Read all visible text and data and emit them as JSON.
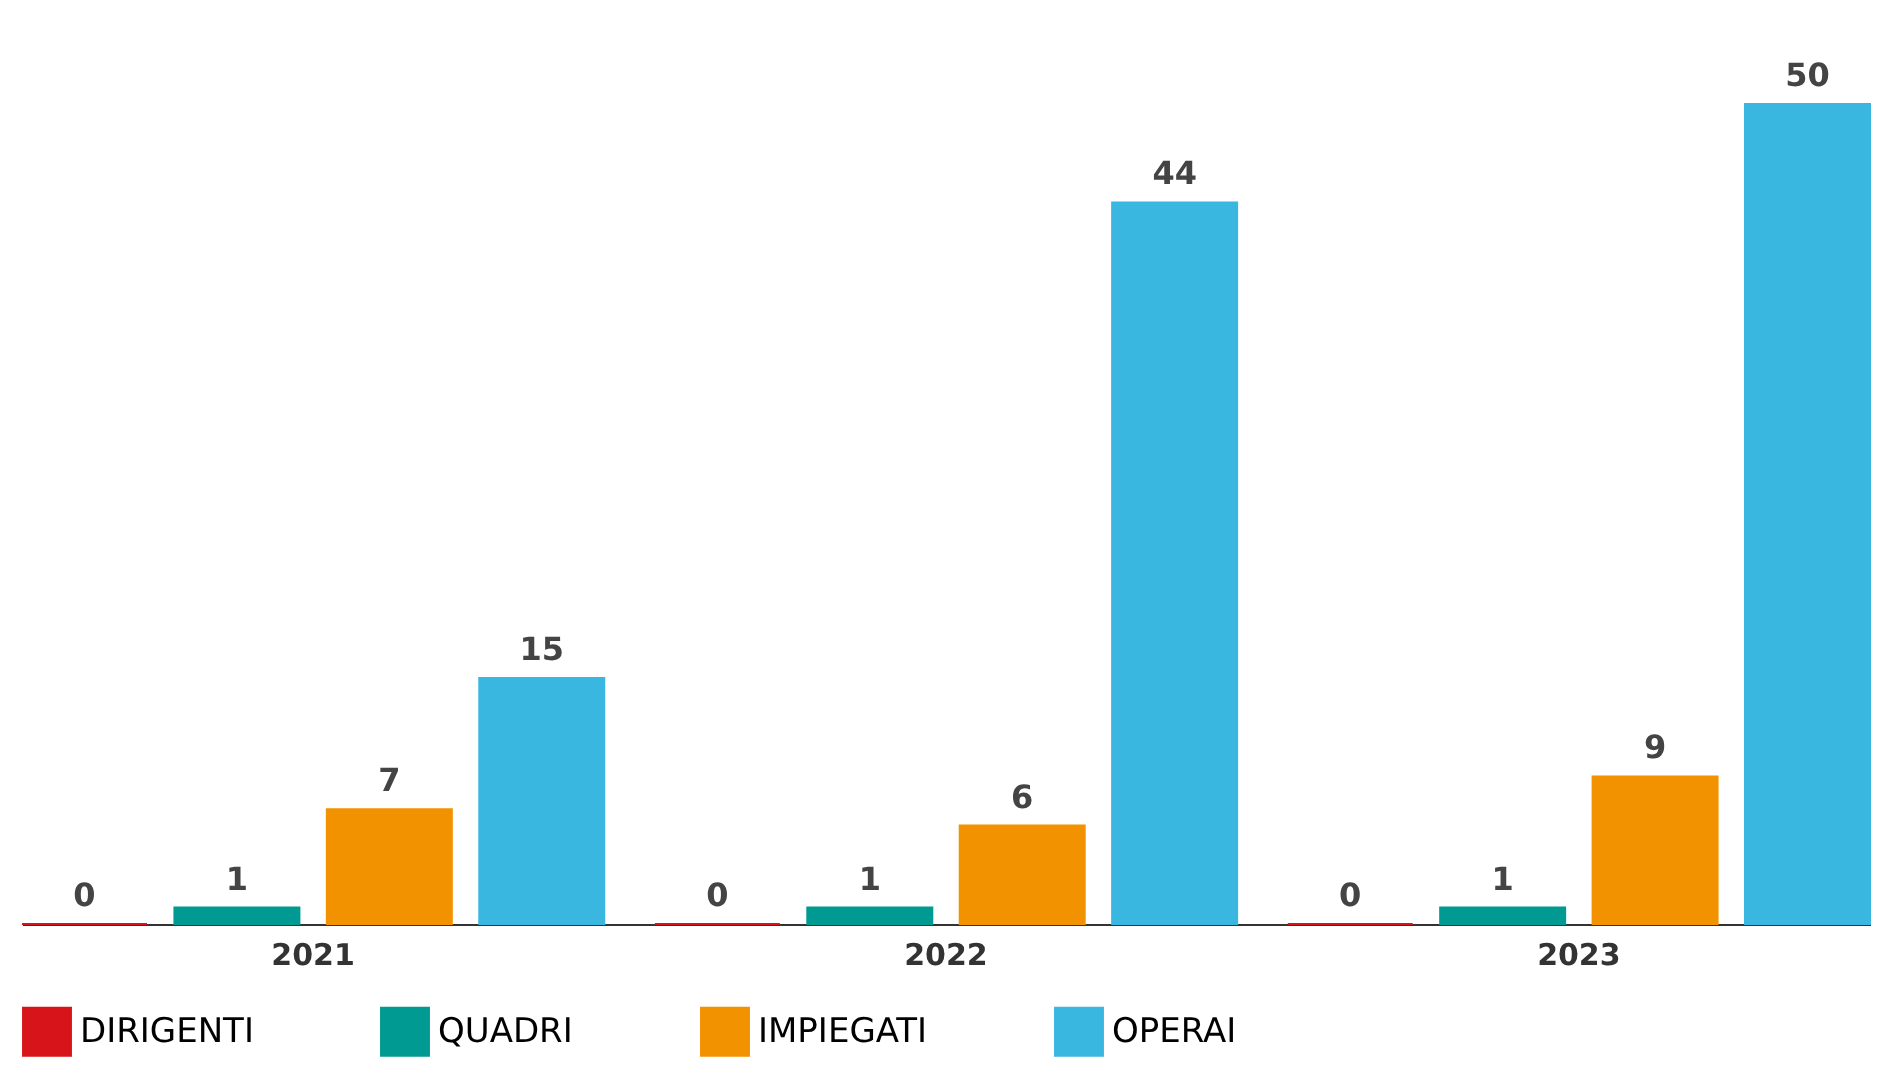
{
  "chart_data": {
    "type": "bar",
    "categories": [
      "2021",
      "2022",
      "2023"
    ],
    "series": [
      {
        "name": "DIRIGENTI",
        "color": "#d7141a",
        "values": [
          0,
          0,
          0
        ]
      },
      {
        "name": "QUADRI",
        "color": "#009a93",
        "values": [
          1,
          1,
          1
        ]
      },
      {
        "name": "IMPIEGATI",
        "color": "#f39200",
        "values": [
          7,
          6,
          9
        ]
      },
      {
        "name": "OPERAI",
        "color": "#3ab7e0",
        "values": [
          15,
          44,
          50
        ]
      }
    ],
    "data_labels": true,
    "legend": "bottom",
    "grid": false
  }
}
